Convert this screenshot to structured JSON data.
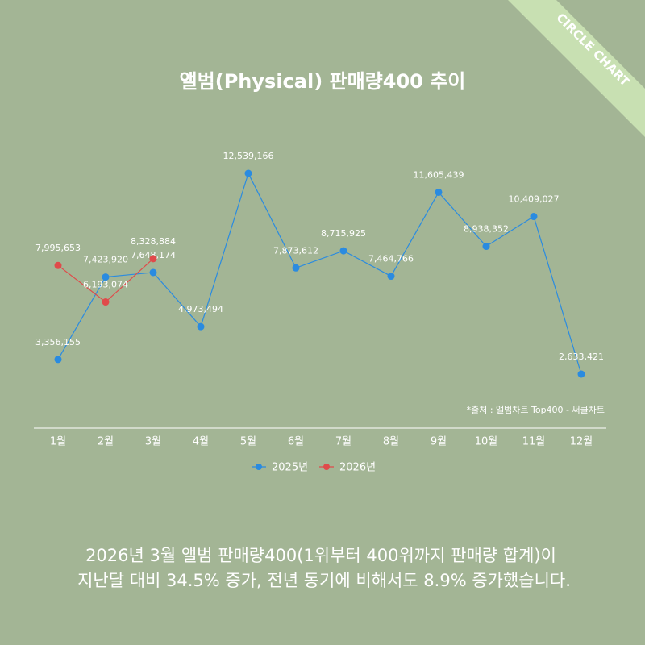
{
  "chart_data": {
    "type": "line",
    "title": "앨범(Physical) 판매량400 추이",
    "corner_label": "CIRCLE CHART",
    "source": "*출처 : 앨범차트 Top400 - 써클차트",
    "categories": [
      "1월",
      "2월",
      "3월",
      "4월",
      "5월",
      "6월",
      "7월",
      "8월",
      "9월",
      "10월",
      "11월",
      "12월"
    ],
    "series": [
      {
        "name": "2025년",
        "color": "#2a8be0",
        "values": [
          3356155,
          7423920,
          7648174,
          4973494,
          12539166,
          7873612,
          8715925,
          7464766,
          11605439,
          8938352,
          10409027,
          2633421
        ],
        "value_labels": [
          "3,356,155",
          "7,423,920",
          "7,648,174",
          "4,973,494",
          "12,539,166",
          "7,873,612",
          "8,715,925",
          "7,464,766",
          "11,605,439",
          "8,938,352",
          "10,409,027",
          "2,633,421"
        ]
      },
      {
        "name": "2026년",
        "color": "#e04a4a",
        "values": [
          7995653,
          6193074,
          8328884,
          null,
          null,
          null,
          null,
          null,
          null,
          null,
          null,
          null
        ],
        "value_labels": [
          "7,995,653",
          "6,193,074",
          "8,328,884",
          null,
          null,
          null,
          null,
          null,
          null,
          null,
          null,
          null
        ]
      }
    ],
    "legend": "bottom",
    "caption": [
      "2026년 3월 앨범 판매량400(1위부터 400위까지 판매량 합계)이",
      "지난달 대비 34.5% 증가, 전년 동기에 비해서도 8.9% 증가했습니다."
    ]
  }
}
